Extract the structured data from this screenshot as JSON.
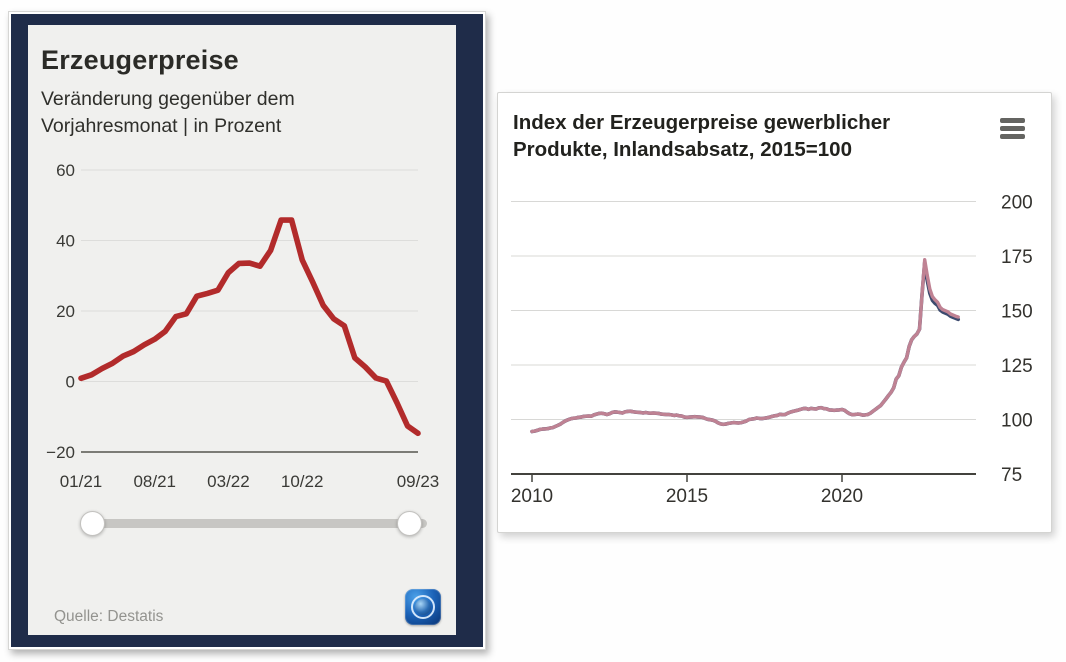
{
  "left_card": {
    "title": "Erzeugerpreise",
    "subtitle": "Veränderung gegenüber dem Vorjahresmonat | in Prozent",
    "source": "Quelle: Destatis",
    "logo_icon": "tagesschau-globe-app",
    "slider": {
      "handle_count": 2
    }
  },
  "right_card": {
    "title": "Index der Erzeugerpreise gewerblicher Produkte, Inlandsabsatz, 2015=100",
    "menu_icon": "hamburger-menu"
  },
  "colors": {
    "left_line": "#b22b2b",
    "frame_navy": "#1f2c49",
    "panel_gray": "#f0f0ee",
    "right_line_primary": "#bf8293",
    "right_line_secondary": "#3c4a6e",
    "gridline": "#dddddb",
    "axis_dark": "#43423d"
  },
  "chart_data": [
    {
      "type": "line",
      "title": "Erzeugerpreise",
      "subtitle": "Veränderung gegenüber dem Vorjahresmonat | in Prozent",
      "source": "Quelle: Destatis",
      "x_unit": "month",
      "x_tick_labels": [
        "01/21",
        "08/21",
        "03/22",
        "10/22",
        "09/23"
      ],
      "x_tick_month_index": [
        0,
        7,
        14,
        21,
        32
      ],
      "y_ticks": [
        60,
        40,
        20,
        0,
        -20
      ],
      "y_tick_labels": [
        "60",
        "40",
        "20",
        "0",
        "−20"
      ],
      "ylim": [
        -20,
        60
      ],
      "grid": true,
      "legend": false,
      "series": [
        {
          "name": "Erzeugerpreise Veränderung zum Vorjahresmonat in Prozent",
          "color": "#b22b2b",
          "values": [
            0.9,
            1.9,
            3.7,
            5.2,
            7.2,
            8.5,
            10.4,
            12.0,
            14.2,
            18.4,
            19.2,
            24.2,
            25.0,
            25.9,
            30.9,
            33.5,
            33.6,
            32.7,
            37.2,
            45.8,
            45.8,
            34.5,
            28.2,
            21.6,
            17.8,
            15.8,
            6.7,
            4.1,
            1.0,
            0.1,
            -6.0,
            -12.6,
            -14.7
          ]
        }
      ]
    },
    {
      "type": "line",
      "title": "Index der Erzeugerpreise gewerblicher Produkte, Inlandsabsatz, 2015=100",
      "x_unit": "month",
      "x_start_year": 2010,
      "x_tick_labels": [
        "2010",
        "2015",
        "2020"
      ],
      "x_tick_years": [
        2010,
        2015,
        2020
      ],
      "y_ticks": [
        200,
        175,
        150,
        125,
        100,
        75
      ],
      "ylim": [
        75,
        200
      ],
      "grid": true,
      "legend": false,
      "series": [
        {
          "name": "index-secondary-dark",
          "color": "#3c4a6e",
          "values": [
            94.5,
            94.7,
            95.0,
            95.4,
            95.6,
            95.7,
            95.8,
            96.1,
            96.3,
            96.8,
            97.3,
            97.9,
            98.7,
            99.4,
            99.9,
            100.3,
            100.6,
            100.7,
            101.0,
            101.1,
            101.4,
            101.5,
            101.6,
            101.5,
            102.1,
            102.5,
            102.8,
            102.9,
            102.6,
            102.3,
            102.6,
            103.2,
            103.5,
            103.4,
            103.2,
            103.0,
            103.5,
            103.7,
            103.8,
            103.6,
            103.4,
            103.3,
            103.2,
            103.0,
            103.2,
            103.0,
            102.9,
            103.0,
            102.9,
            102.8,
            102.5,
            102.4,
            102.3,
            102.3,
            102.1,
            101.9,
            102.0,
            101.7,
            101.6,
            101.1,
            101.0,
            101.1,
            101.2,
            101.3,
            101.2,
            101.1,
            101.0,
            100.5,
            100.1,
            99.9,
            99.7,
            99.2,
            98.5,
            98.0,
            97.8,
            97.9,
            98.2,
            98.4,
            98.6,
            98.5,
            98.4,
            98.6,
            98.9,
            99.3,
            100.0,
            100.2,
            100.3,
            100.7,
            100.5,
            100.4,
            100.6,
            100.8,
            101.1,
            101.4,
            101.7,
            101.9,
            102.4,
            102.2,
            102.3,
            102.9,
            103.4,
            103.7,
            104.0,
            104.3,
            104.7,
            105.0,
            105.1,
            104.7,
            105.1,
            104.9,
            104.8,
            105.3,
            105.4,
            105.0,
            104.9,
            104.4,
            104.3,
            104.2,
            104.3,
            104.4,
            104.6,
            104.2,
            103.3,
            102.6,
            102.2,
            102.3,
            102.5,
            102.4,
            102.0,
            102.1,
            102.3,
            102.9,
            103.8,
            104.7,
            105.6,
            106.4,
            107.9,
            109.4,
            111.0,
            112.5,
            114.6,
            118.6,
            120.1,
            124.0,
            126.3,
            128.3,
            133.6,
            136.6,
            138.1,
            139.2,
            141.4,
            157.8,
            172.0,
            163.9,
            157.9,
            154.7,
            153.3,
            152.4,
            150.2,
            149.3,
            148.8,
            148.3,
            147.4,
            146.9,
            146.4,
            145.9
          ]
        },
        {
          "name": "index-primary-rose",
          "color": "#bf8293",
          "values": [
            94.5,
            94.7,
            95.0,
            95.4,
            95.6,
            95.7,
            95.8,
            96.1,
            96.3,
            96.8,
            97.3,
            97.9,
            98.7,
            99.4,
            99.9,
            100.3,
            100.6,
            100.7,
            101.0,
            101.1,
            101.4,
            101.5,
            101.6,
            101.5,
            102.1,
            102.5,
            102.8,
            102.9,
            102.6,
            102.3,
            102.6,
            103.2,
            103.5,
            103.4,
            103.2,
            103.0,
            103.5,
            103.7,
            103.8,
            103.6,
            103.4,
            103.3,
            103.2,
            103.0,
            103.2,
            103.0,
            102.9,
            103.0,
            102.9,
            102.8,
            102.5,
            102.4,
            102.3,
            102.3,
            102.1,
            101.9,
            102.0,
            101.7,
            101.6,
            101.1,
            101.0,
            101.1,
            101.2,
            101.3,
            101.2,
            101.1,
            101.0,
            100.5,
            100.1,
            99.9,
            99.7,
            99.2,
            98.5,
            98.0,
            97.8,
            97.9,
            98.2,
            98.4,
            98.6,
            98.5,
            98.4,
            98.6,
            98.9,
            99.3,
            100.0,
            100.2,
            100.3,
            100.7,
            100.5,
            100.4,
            100.6,
            100.8,
            101.1,
            101.4,
            101.7,
            101.9,
            102.4,
            102.2,
            102.3,
            102.9,
            103.4,
            103.7,
            104.0,
            104.3,
            104.7,
            105.0,
            105.1,
            104.7,
            105.1,
            104.9,
            104.8,
            105.3,
            105.4,
            105.0,
            104.9,
            104.4,
            104.3,
            104.2,
            104.3,
            104.4,
            104.6,
            104.2,
            103.3,
            102.6,
            102.2,
            102.3,
            102.5,
            102.4,
            102.0,
            102.1,
            102.3,
            102.9,
            103.8,
            104.7,
            105.6,
            106.4,
            107.9,
            109.4,
            111.0,
            112.5,
            114.6,
            118.6,
            120.1,
            124.0,
            126.3,
            128.3,
            133.6,
            136.6,
            138.1,
            139.2,
            141.4,
            157.8,
            173.3,
            166.3,
            159.9,
            156.4,
            154.9,
            153.8,
            151.4,
            150.4,
            149.9,
            149.4,
            148.4,
            147.9,
            147.4,
            147.0
          ]
        }
      ]
    }
  ]
}
